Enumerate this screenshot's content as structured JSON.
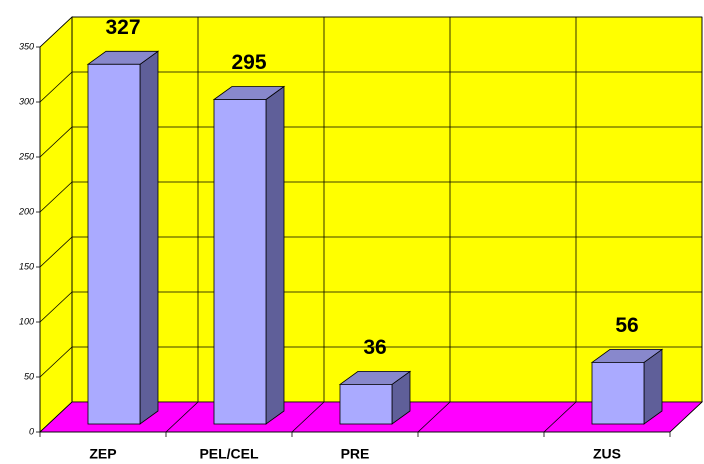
{
  "chart_data": {
    "type": "bar3d",
    "categories": [
      "ZEP",
      "PEL/CEL",
      "PRE",
      null,
      "ZUS"
    ],
    "values": [
      327,
      295,
      36,
      null,
      56
    ],
    "color": "#aaaaff",
    "wall_color": "#ffff00",
    "floor_color": "#ff00ff",
    "ylim": [
      0,
      350
    ],
    "yticks": [
      0,
      50,
      100,
      150,
      200,
      250,
      300,
      350
    ],
    "grid": true
  }
}
